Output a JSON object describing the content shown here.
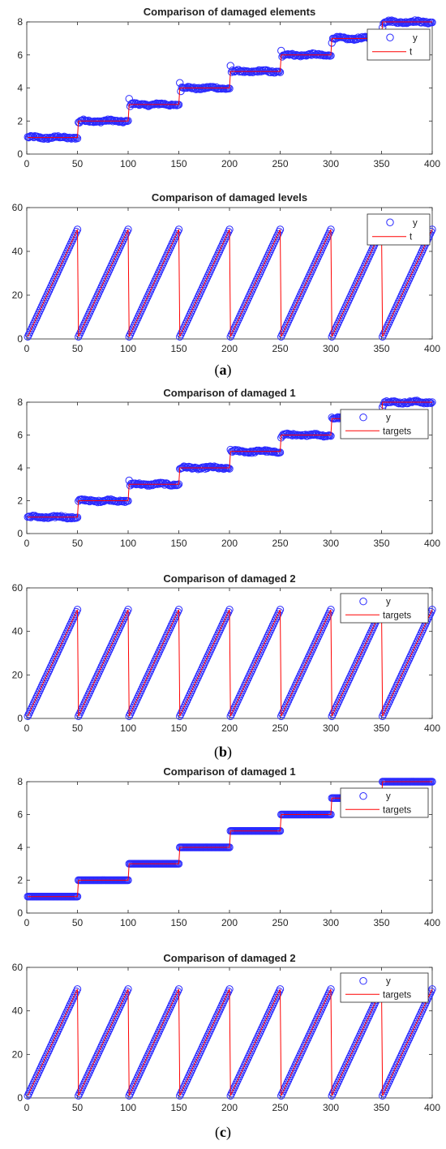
{
  "panel_labels": [
    "a",
    "b",
    "c"
  ],
  "colors": {
    "marker": "#2a2aff",
    "line": "#ff0000",
    "axis": "#262626"
  },
  "chart_data": [
    {
      "type": "scatter",
      "title": "Comparison of damaged elements",
      "xlim": [
        0,
        400
      ],
      "ylim": [
        0,
        8
      ],
      "xticks": [
        "0",
        "50",
        "100",
        "150",
        "200",
        "250",
        "300",
        "350",
        "400"
      ],
      "yticks": [
        "0",
        "2",
        "4",
        "6",
        "8"
      ],
      "legend": [
        "y",
        "t"
      ],
      "series": [
        {
          "name": "y",
          "kind": "markers",
          "pattern": "steps",
          "noise": "moderate"
        },
        {
          "name": "t",
          "kind": "line",
          "pattern": "steps"
        }
      ]
    },
    {
      "type": "scatter",
      "title": "Comparison of damaged levels",
      "xlim": [
        0,
        400
      ],
      "ylim": [
        0,
        60
      ],
      "xticks": [
        "0",
        "50",
        "100",
        "150",
        "200",
        "250",
        "300",
        "350",
        "400"
      ],
      "yticks": [
        "0",
        "20",
        "40",
        "60"
      ],
      "legend": [
        "y",
        "t"
      ],
      "series": [
        {
          "name": "y",
          "kind": "markers",
          "pattern": "sawtooth"
        },
        {
          "name": "t",
          "kind": "line",
          "pattern": "sawtooth"
        }
      ]
    },
    {
      "type": "scatter",
      "title": "Comparison of damaged 1",
      "xlim": [
        0,
        400
      ],
      "ylim": [
        0,
        8
      ],
      "xticks": [
        "0",
        "50",
        "100",
        "150",
        "200",
        "250",
        "300",
        "350",
        "400"
      ],
      "yticks": [
        "0",
        "2",
        "4",
        "6",
        "8"
      ],
      "legend": [
        "y",
        "targets"
      ],
      "series": [
        {
          "name": "y",
          "kind": "markers",
          "pattern": "steps",
          "noise": "moderate"
        },
        {
          "name": "targets",
          "kind": "line",
          "pattern": "steps"
        }
      ]
    },
    {
      "type": "scatter",
      "title": "Comparison of damaged 2",
      "xlim": [
        0,
        400
      ],
      "ylim": [
        0,
        60
      ],
      "xticks": [
        "0",
        "50",
        "100",
        "150",
        "200",
        "250",
        "300",
        "350",
        "400"
      ],
      "yticks": [
        "0",
        "20",
        "40",
        "60"
      ],
      "legend": [
        "y",
        "targets"
      ],
      "series": [
        {
          "name": "y",
          "kind": "markers",
          "pattern": "sawtooth"
        },
        {
          "name": "targets",
          "kind": "line",
          "pattern": "sawtooth"
        }
      ]
    },
    {
      "type": "scatter",
      "title": "Comparison of damaged 1",
      "xlim": [
        0,
        400
      ],
      "ylim": [
        0,
        8
      ],
      "xticks": [
        "0",
        "50",
        "100",
        "150",
        "200",
        "250",
        "300",
        "350",
        "400"
      ],
      "yticks": [
        "0",
        "2",
        "4",
        "6",
        "8"
      ],
      "legend": [
        "y",
        "targets"
      ],
      "series": [
        {
          "name": "y",
          "kind": "markers",
          "pattern": "steps",
          "noise": "none"
        },
        {
          "name": "targets",
          "kind": "line",
          "pattern": "steps"
        }
      ]
    },
    {
      "type": "scatter",
      "title": "Comparison of damaged 2",
      "xlim": [
        0,
        400
      ],
      "ylim": [
        0,
        60
      ],
      "xticks": [
        "0",
        "50",
        "100",
        "150",
        "200",
        "250",
        "300",
        "350",
        "400"
      ],
      "yticks": [
        "0",
        "20",
        "40",
        "60"
      ],
      "legend": [
        "y",
        "targets"
      ],
      "series": [
        {
          "name": "y",
          "kind": "markers",
          "pattern": "sawtooth"
        },
        {
          "name": "targets",
          "kind": "line",
          "pattern": "sawtooth"
        }
      ]
    }
  ]
}
